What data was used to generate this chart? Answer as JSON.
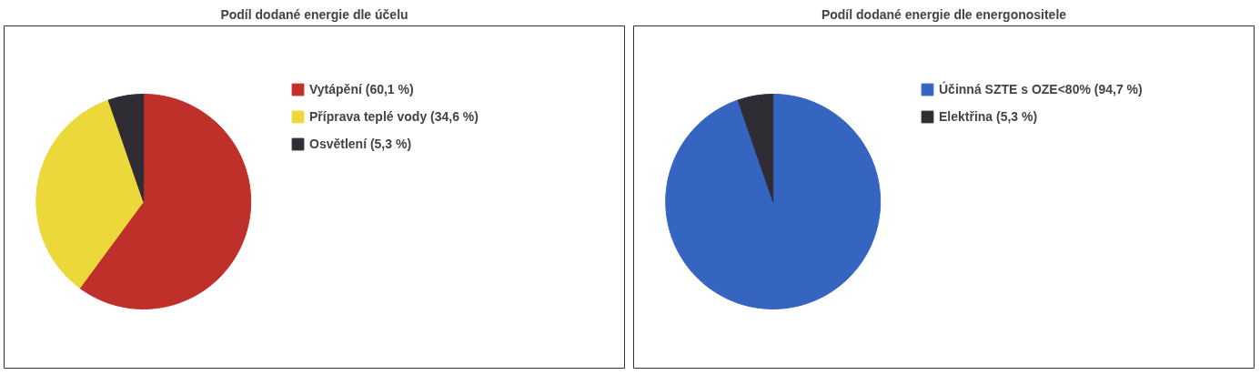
{
  "chart_data": [
    {
      "type": "pie",
      "title": "Podíl dodané energie dle účelu",
      "categories": [
        "Vytápění (60,1 %)",
        "Příprava teplé vody (34,6 %)",
        "Osvětlení (5,3 %)"
      ],
      "values": [
        60.1,
        34.6,
        5.3
      ],
      "colors": [
        "#c0302b",
        "#ecd83a",
        "#2f2d33"
      ],
      "legend": "top right"
    },
    {
      "type": "pie",
      "title": "Podíl dodané energie dle energonositele",
      "categories": [
        "Účinná SZTE s OZE<80% (94,7 %)",
        "Elektřina (5,3 %)"
      ],
      "values": [
        94.7,
        5.3
      ],
      "colors": [
        "#3565c0",
        "#2f2d33"
      ],
      "legend": "top right"
    }
  ]
}
